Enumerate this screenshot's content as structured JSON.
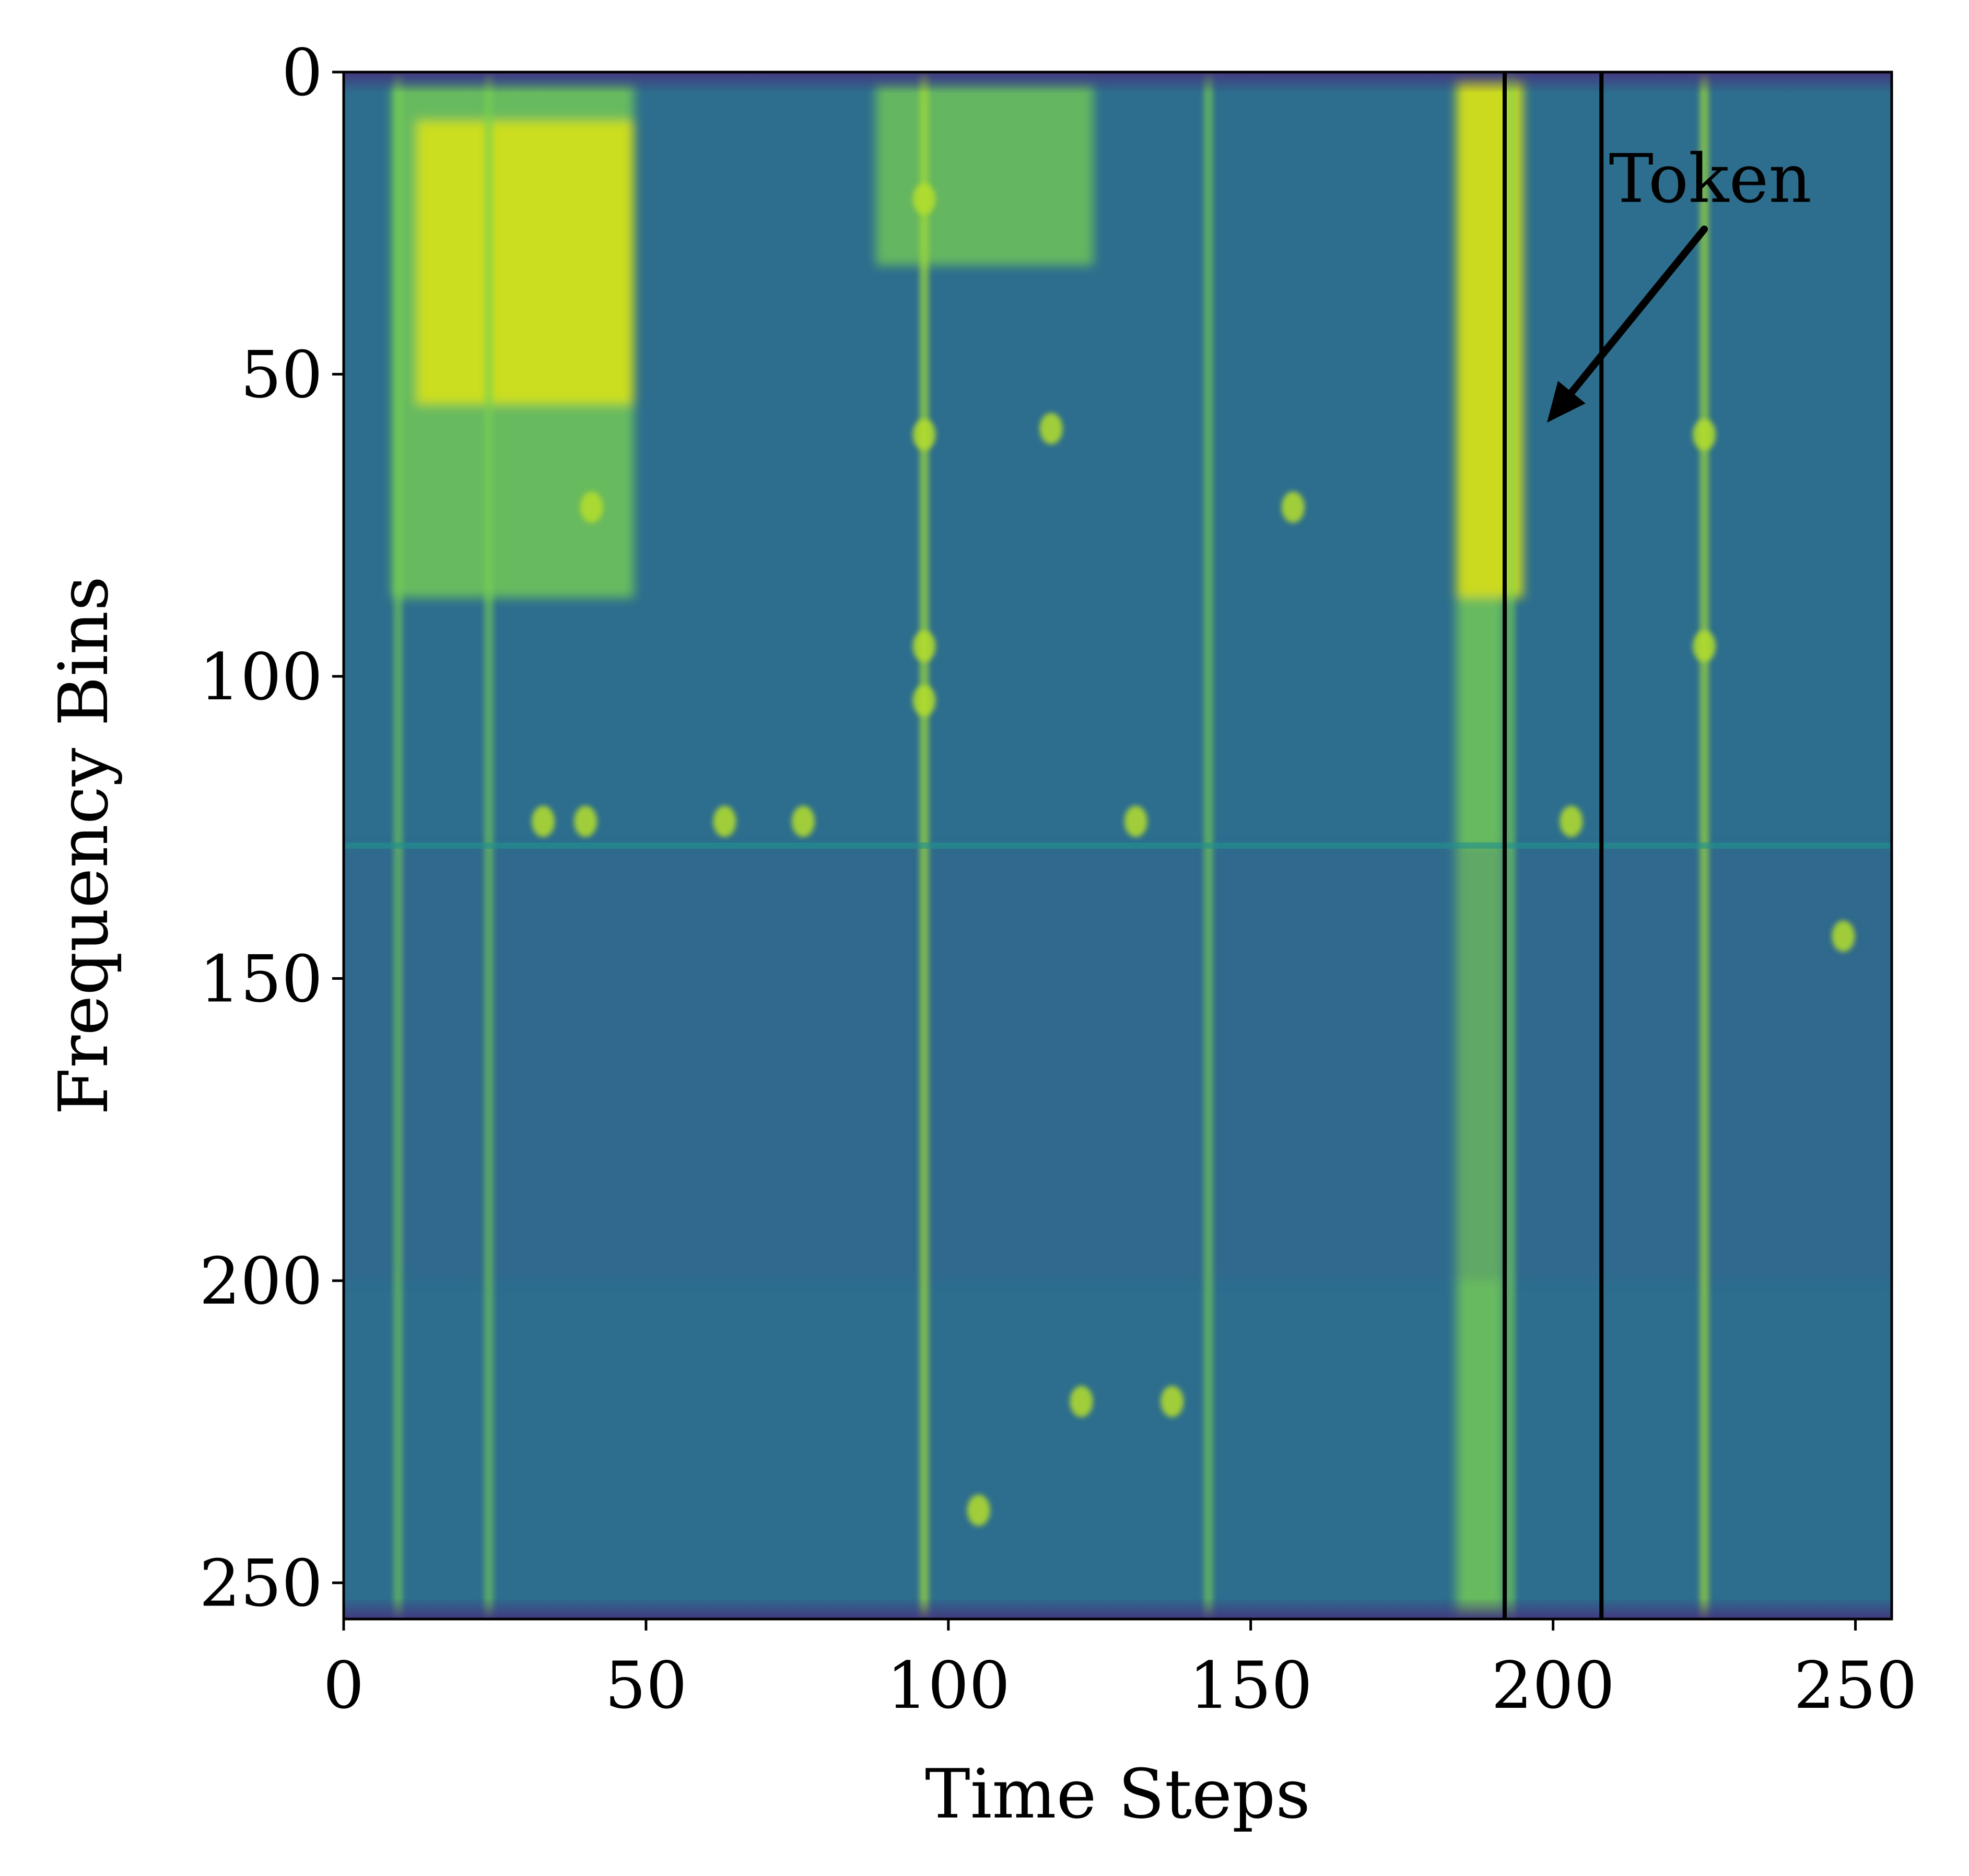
{
  "chart_data": {
    "type": "heatmap",
    "title": "",
    "xlabel": "Time Steps",
    "ylabel": "Frequency Bins",
    "xlim": [
      0,
      256
    ],
    "ylim": [
      256,
      0
    ],
    "x_ticks": [
      "0",
      "50",
      "100",
      "150",
      "200",
      "250"
    ],
    "y_ticks": [
      "0",
      "50",
      "100",
      "150",
      "200",
      "250"
    ],
    "colormap": "viridis",
    "grid": false,
    "colors": {
      "background": "#2d6e8e",
      "bright_high": "#d8e219",
      "bright_mid": "#7ad151",
      "teal": "#21918c",
      "dark_edge": "#3b528b",
      "outer": "#46327e",
      "marker_line": "#000000"
    },
    "bright_regions": [
      {
        "x": [
          8,
          48
        ],
        "y": [
          2,
          87
        ],
        "intensity": 0.55
      },
      {
        "x": [
          12,
          48
        ],
        "y": [
          8,
          55
        ],
        "intensity": 0.85
      },
      {
        "x": [
          184,
          195
        ],
        "y": [
          1,
          87
        ],
        "intensity": 0.95
      },
      {
        "x": [
          184,
          192
        ],
        "y": [
          87,
          256
        ],
        "intensity": 0.55
      },
      {
        "x": [
          88,
          124
        ],
        "y": [
          2,
          32
        ],
        "intensity": 0.45
      }
    ],
    "vertical_streaks": [
      {
        "x": 96,
        "intensity": 0.75
      },
      {
        "x": 143,
        "intensity": 0.55
      },
      {
        "x": 225,
        "intensity": 0.7
      },
      {
        "x": 24,
        "intensity": 0.5
      },
      {
        "x": 9,
        "intensity": 0.45
      },
      {
        "x": 193,
        "intensity": 0.45
      }
    ],
    "horizontal_line": {
      "y": 128,
      "intensity": 0.4
    },
    "spots": [
      {
        "x": 33,
        "y": 124
      },
      {
        "x": 40,
        "y": 124
      },
      {
        "x": 63,
        "y": 124
      },
      {
        "x": 76,
        "y": 124
      },
      {
        "x": 131,
        "y": 124
      },
      {
        "x": 203,
        "y": 124
      },
      {
        "x": 96,
        "y": 21
      },
      {
        "x": 96,
        "y": 60
      },
      {
        "x": 96,
        "y": 95
      },
      {
        "x": 96,
        "y": 104
      },
      {
        "x": 225,
        "y": 60
      },
      {
        "x": 225,
        "y": 95
      },
      {
        "x": 248,
        "y": 143
      },
      {
        "x": 105,
        "y": 238
      },
      {
        "x": 122,
        "y": 220
      },
      {
        "x": 137,
        "y": 220
      },
      {
        "x": 157,
        "y": 72
      },
      {
        "x": 117,
        "y": 59
      },
      {
        "x": 41,
        "y": 72
      }
    ],
    "marker_lines_x": [
      192,
      208
    ],
    "annotation": {
      "text": "Token",
      "text_at": [
        226,
        18
      ],
      "arrow_from": [
        225,
        26
      ],
      "arrow_to": [
        199,
        58
      ]
    }
  }
}
